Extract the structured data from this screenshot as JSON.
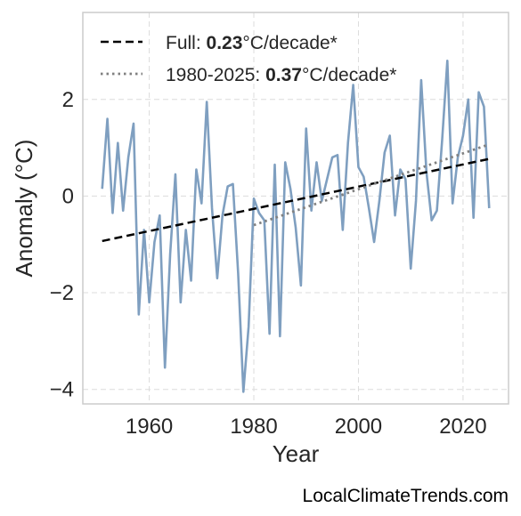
{
  "chart_data": {
    "type": "line",
    "xlabel": "Year",
    "ylabel": "Anomaly (°C)",
    "xlim": [
      1947.3,
      2028.7
    ],
    "ylim": [
      -4.3,
      3.8
    ],
    "x_ticks": [
      "1960",
      "1980",
      "2000",
      "2020"
    ],
    "y_ticks": [
      "−4",
      "−2",
      "0",
      "2"
    ],
    "grid": true,
    "legend_placement": "top-left",
    "colors": {
      "series": "#7f9fc0",
      "trend_full": "#000000",
      "trend_recent": "#808080",
      "grid": "#dcdcdc",
      "frame": "#cccccc"
    },
    "series": [
      {
        "x": [
          1951,
          1952,
          1953,
          1954,
          1955,
          1956,
          1957,
          1958,
          1959,
          1960,
          1961,
          1962,
          1963,
          1964,
          1965,
          1966,
          1967,
          1968,
          1969,
          1970,
          1971,
          1972,
          1973,
          1974,
          1975,
          1976,
          1977,
          1978,
          1979,
          1980,
          1981,
          1982,
          1983,
          1984,
          1985,
          1986,
          1987,
          1988,
          1989,
          1990,
          1991,
          1992,
          1993,
          1994,
          1995,
          1996,
          1997,
          1998,
          1999,
          2000,
          2001,
          2002,
          2003,
          2004,
          2005,
          2006,
          2007,
          2008,
          2009,
          2010,
          2011,
          2012,
          2013,
          2014,
          2015,
          2016,
          2017,
          2018,
          2019,
          2020,
          2021,
          2022,
          2023,
          2024,
          2025
        ],
        "y": [
          0.15,
          1.6,
          -0.35,
          1.1,
          -0.3,
          0.8,
          1.5,
          -2.45,
          -0.7,
          -2.2,
          -0.95,
          -0.4,
          -3.55,
          -1.2,
          0.45,
          -2.2,
          -0.7,
          -1.75,
          0.55,
          -0.15,
          1.95,
          -0.25,
          -1.7,
          -0.4,
          0.2,
          0.25,
          -1.6,
          -4.05,
          -2.7,
          -0.05,
          -0.35,
          -0.5,
          -2.85,
          0.65,
          -2.9,
          0.7,
          0.15,
          -0.65,
          -1.85,
          1.4,
          -0.3,
          0.7,
          -0.1,
          0.35,
          0.8,
          0.85,
          -0.7,
          1.1,
          2.3,
          0.6,
          0.4,
          -0.25,
          -0.95,
          -0.1,
          0.9,
          1.25,
          -0.4,
          0.55,
          0.35,
          -1.5,
          -0.1,
          2.4,
          0.5,
          -0.5,
          -0.3,
          1.15,
          2.8,
          -0.15,
          0.8,
          1.25,
          2.0,
          -0.45,
          2.15,
          1.85,
          -0.25
        ]
      },
      {
        "name": "Full: 0.23°C/decade*",
        "style": "dashed",
        "x": [
          1951,
          2025
        ],
        "y": [
          -0.93,
          0.77
        ]
      },
      {
        "name": "1980-2025: 0.37°C/decade*",
        "style": "dotted",
        "x": [
          1980,
          2025
        ],
        "y": [
          -0.6,
          1.07
        ]
      }
    ],
    "legend": [
      {
        "prefix": "Full: ",
        "value": "0.23",
        "suffix": "°C/decade*"
      },
      {
        "prefix": "1980-2025: ",
        "value": "0.37",
        "suffix": "°C/decade*"
      }
    ]
  },
  "credit": "LocalClimateTrends.com"
}
